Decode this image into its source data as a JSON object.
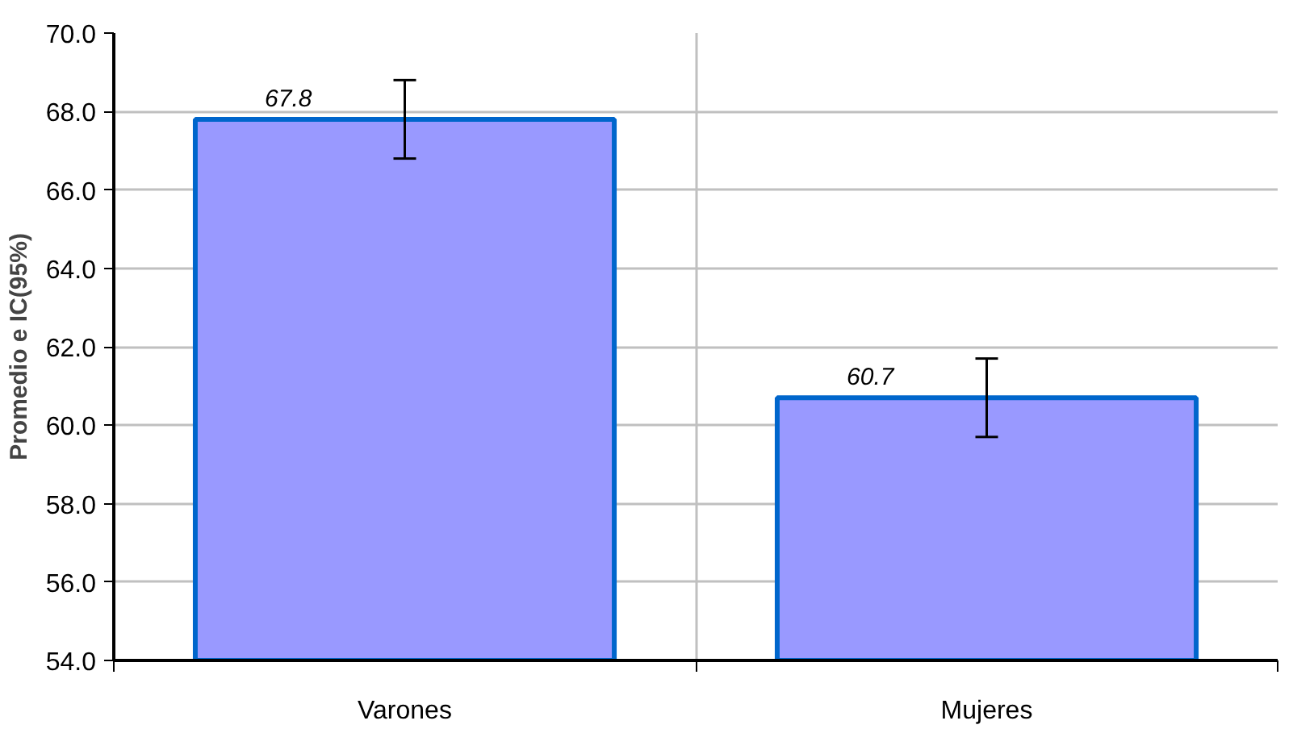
{
  "chart_data": {
    "type": "bar",
    "ylabel": "Promedio e IC(95%)",
    "categories": [
      "Varones",
      "Mujeres"
    ],
    "values": [
      67.8,
      60.7
    ],
    "errors": [
      1.0,
      1.0
    ],
    "color": "#9999ff",
    "data_labels": true,
    "ylim": [
      54,
      70
    ],
    "yticks": [
      {
        "value": 54,
        "label": "54.0"
      },
      {
        "value": 56,
        "label": "56.0"
      },
      {
        "value": 58,
        "label": "58.0"
      },
      {
        "value": 60,
        "label": "60.0"
      },
      {
        "value": 62,
        "label": "62.0"
      },
      {
        "value": 64,
        "label": "64.0"
      },
      {
        "value": 66,
        "label": "66.0"
      },
      {
        "value": 68,
        "label": "68.0"
      },
      {
        "value": 70,
        "label": "70.0"
      }
    ],
    "grid": true
  }
}
